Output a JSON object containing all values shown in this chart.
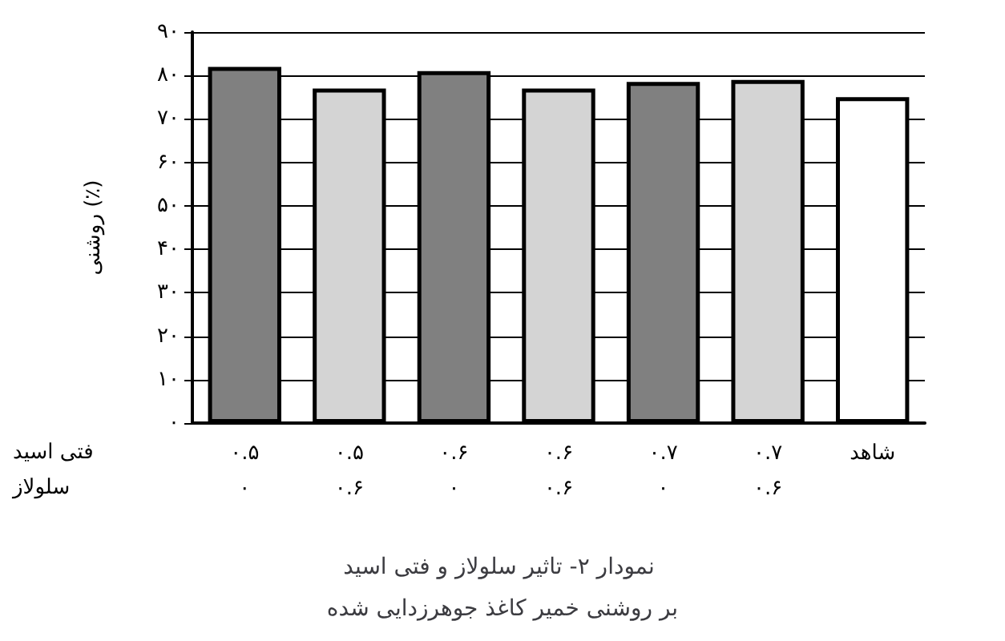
{
  "chart_data": {
    "type": "bar",
    "title": "نمودار ۲- تاثیر سلولاز و فتی اسید بر روشنی خمیر کاغذ جوهرزدایی شده",
    "ylabel": "روشنی (٪)",
    "categories": [
      "۰.۵\n۰",
      "۰.۵\n۰.۶",
      "۰.۶\n۰",
      "۰.۶\n۰.۶",
      "۰.۷\n۰",
      "۰.۷\n۰.۶",
      "شاهد"
    ],
    "values": [
      82,
      77,
      81,
      77,
      78.5,
      79,
      75
    ],
    "colors": [
      "#808080",
      "#d4d4d4",
      "#808080",
      "#d4d4d4",
      "#808080",
      "#d4d4d4",
      "#ffffff"
    ],
    "annotations": [
      "فتی اسید",
      "سلولاز"
    ],
    "ylim": [
      0,
      90
    ],
    "yticks": [
      {
        "value": 0,
        "label": "۰"
      },
      {
        "value": 10,
        "label": "۱۰"
      },
      {
        "value": 20,
        "label": "۲۰"
      },
      {
        "value": 30,
        "label": "۳۰"
      },
      {
        "value": 40,
        "label": "۴۰"
      },
      {
        "value": 50,
        "label": "۵۰"
      },
      {
        "value": 60,
        "label": "۶۰"
      },
      {
        "value": 70,
        "label": "۷۰"
      },
      {
        "value": 80,
        "label": "۸۰"
      },
      {
        "value": 90,
        "label": "۹۰"
      }
    ],
    "grid": "y"
  }
}
